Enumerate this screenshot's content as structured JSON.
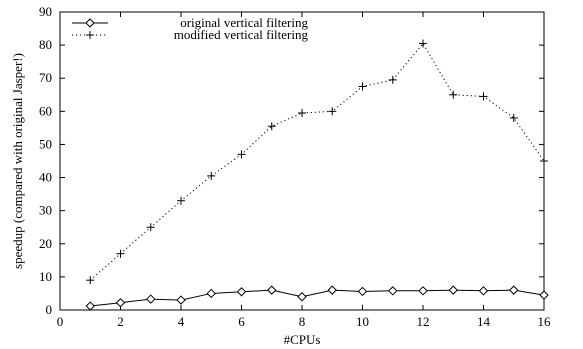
{
  "chart_data": {
    "type": "line",
    "title": "",
    "xlabel": "#CPUs",
    "ylabel": "speedup (compared with original Jasper!)",
    "xlim": [
      0,
      16
    ],
    "ylim": [
      0,
      90
    ],
    "xticks": [
      0,
      2,
      4,
      6,
      8,
      10,
      12,
      14,
      16
    ],
    "yticks": [
      0,
      10,
      20,
      30,
      40,
      50,
      60,
      70,
      80,
      90
    ],
    "legend_position": "top-left",
    "grid": false,
    "series": [
      {
        "name": "original vertical filtering",
        "marker": "diamond",
        "line_style": "solid",
        "color": "#000000",
        "x": [
          1,
          2,
          3,
          4,
          5,
          6,
          7,
          8,
          9,
          10,
          11,
          12,
          13,
          14,
          15,
          16
        ],
        "y": [
          1.2,
          2.2,
          3.3,
          3.0,
          5.0,
          5.5,
          6.0,
          4.0,
          6.0,
          5.6,
          5.8,
          5.8,
          6.0,
          5.8,
          6.0,
          4.5
        ]
      },
      {
        "name": "modified vertical filtering",
        "marker": "plus",
        "line_style": "dotted",
        "color": "#000000",
        "x": [
          1,
          2,
          3,
          4,
          5,
          6,
          7,
          8,
          9,
          10,
          11,
          12,
          13,
          14,
          15,
          16
        ],
        "y": [
          9.0,
          17.0,
          25.0,
          33.0,
          40.5,
          47.0,
          55.5,
          59.5,
          60.0,
          67.5,
          69.5,
          80.5,
          65.0,
          64.5,
          58.0,
          45.0
        ]
      }
    ]
  }
}
